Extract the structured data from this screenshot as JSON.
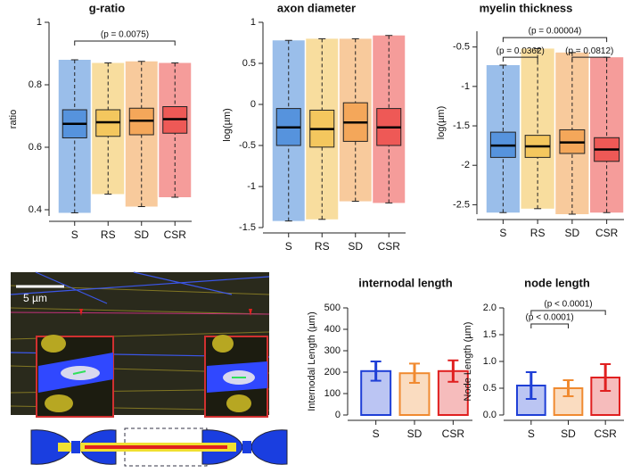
{
  "image": {
    "scale_label": "5 µm"
  },
  "chart_data": [
    {
      "type": "box",
      "title": "g-ratio",
      "ylabel": "ratio",
      "categories": [
        "S",
        "RS",
        "SD",
        "CSR"
      ],
      "colors": [
        "#1f6fd1",
        "#f0b429",
        "#f08a24",
        "#e8231f"
      ],
      "stats": {
        "min": [
          0.39,
          0.45,
          0.41,
          0.44
        ],
        "q1": [
          0.63,
          0.635,
          0.64,
          0.645
        ],
        "median": [
          0.675,
          0.68,
          0.685,
          0.69
        ],
        "q3": [
          0.72,
          0.72,
          0.725,
          0.73
        ],
        "max": [
          0.88,
          0.87,
          0.875,
          0.87
        ]
      },
      "ylim": [
        0.38,
        1.0
      ],
      "yticks": [
        0.4,
        0.6,
        0.8,
        1
      ],
      "annotations": [
        {
          "text": "(p = 0.0075)",
          "between": [
            "S",
            "CSR"
          ],
          "y": 0.94
        }
      ]
    },
    {
      "type": "box",
      "title": "axon diameter",
      "ylabel": "log(µm)",
      "categories": [
        "S",
        "RS",
        "SD",
        "CSR"
      ],
      "colors": [
        "#1f6fd1",
        "#f0b429",
        "#f08a24",
        "#e8231f"
      ],
      "stats": {
        "min": [
          -1.42,
          -1.4,
          -1.18,
          -1.2
        ],
        "q1": [
          -0.5,
          -0.52,
          -0.45,
          -0.5
        ],
        "median": [
          -0.28,
          -0.3,
          -0.22,
          -0.28
        ],
        "q3": [
          -0.05,
          -0.07,
          0.02,
          -0.05
        ],
        "max": [
          0.78,
          0.8,
          0.8,
          0.84
        ]
      },
      "ylim": [
        -1.5,
        1
      ],
      "yticks": [
        -1.5,
        -1,
        -0.5,
        0,
        0.5,
        1
      ],
      "annotations": []
    },
    {
      "type": "box",
      "title": "myelin thickness",
      "ylabel": "log(µm)",
      "categories": [
        "S",
        "RS",
        "SD",
        "CSR"
      ],
      "colors": [
        "#1f6fd1",
        "#f0b429",
        "#f08a24",
        "#e8231f"
      ],
      "stats": {
        "min": [
          -2.6,
          -2.55,
          -2.62,
          -2.6
        ],
        "q1": [
          -1.9,
          -1.9,
          -1.85,
          -1.95
        ],
        "median": [
          -1.75,
          -1.76,
          -1.71,
          -1.8
        ],
        "q3": [
          -1.58,
          -1.62,
          -1.55,
          -1.65
        ],
        "max": [
          -0.73,
          -0.52,
          -0.57,
          -0.63
        ]
      },
      "ylim": [
        -2.62,
        -0.3
      ],
      "yticks": [
        -2.5,
        -2,
        -1.5,
        -1,
        -0.5
      ],
      "annotations": [
        {
          "text": "(p = 0.00004)",
          "between": [
            "S",
            "CSR"
          ],
          "y": -0.38
        },
        {
          "text": "(p = 0.0362)",
          "between": [
            "S",
            "RS"
          ],
          "y": -0.63
        },
        {
          "text": "(p = 0.0812)",
          "between": [
            "SD",
            "CSR"
          ],
          "y": -0.63
        }
      ]
    },
    {
      "type": "bar",
      "title": "internodal length",
      "ylabel": "Internodal Length (µm)",
      "categories": [
        "S",
        "SD",
        "CSR"
      ],
      "colors": [
        "#1f3fd6",
        "#f08a30",
        "#e02020"
      ],
      "values": [
        205,
        195,
        205
      ],
      "errors": [
        45,
        45,
        50
      ],
      "ylim": [
        0,
        500
      ],
      "yticks": [
        0,
        100,
        200,
        300,
        400,
        500
      ],
      "annotations": []
    },
    {
      "type": "bar",
      "title": "node length",
      "ylabel": "Node Length (µm)",
      "categories": [
        "S",
        "SD",
        "CSR"
      ],
      "colors": [
        "#1f3fd6",
        "#f08a30",
        "#e02020"
      ],
      "values": [
        0.55,
        0.5,
        0.7
      ],
      "errors": [
        0.25,
        0.15,
        0.25
      ],
      "ylim": [
        0,
        2
      ],
      "yticks": [
        {
          "value": 0,
          "label": "0.0"
        },
        {
          "value": 0.5,
          "label": "0.5"
        },
        {
          "value": 1,
          "label": "1.0"
        },
        {
          "value": 1.5,
          "label": "1.5"
        },
        {
          "value": 2,
          "label": "2.0"
        }
      ],
      "annotations": [
        {
          "text": "(p < 0.0001)",
          "between": [
            "S",
            "SD"
          ],
          "y": 1.7
        },
        {
          "text": "(p < 0.0001)",
          "between": [
            "S",
            "CSR"
          ],
          "y": 1.95
        }
      ]
    }
  ]
}
